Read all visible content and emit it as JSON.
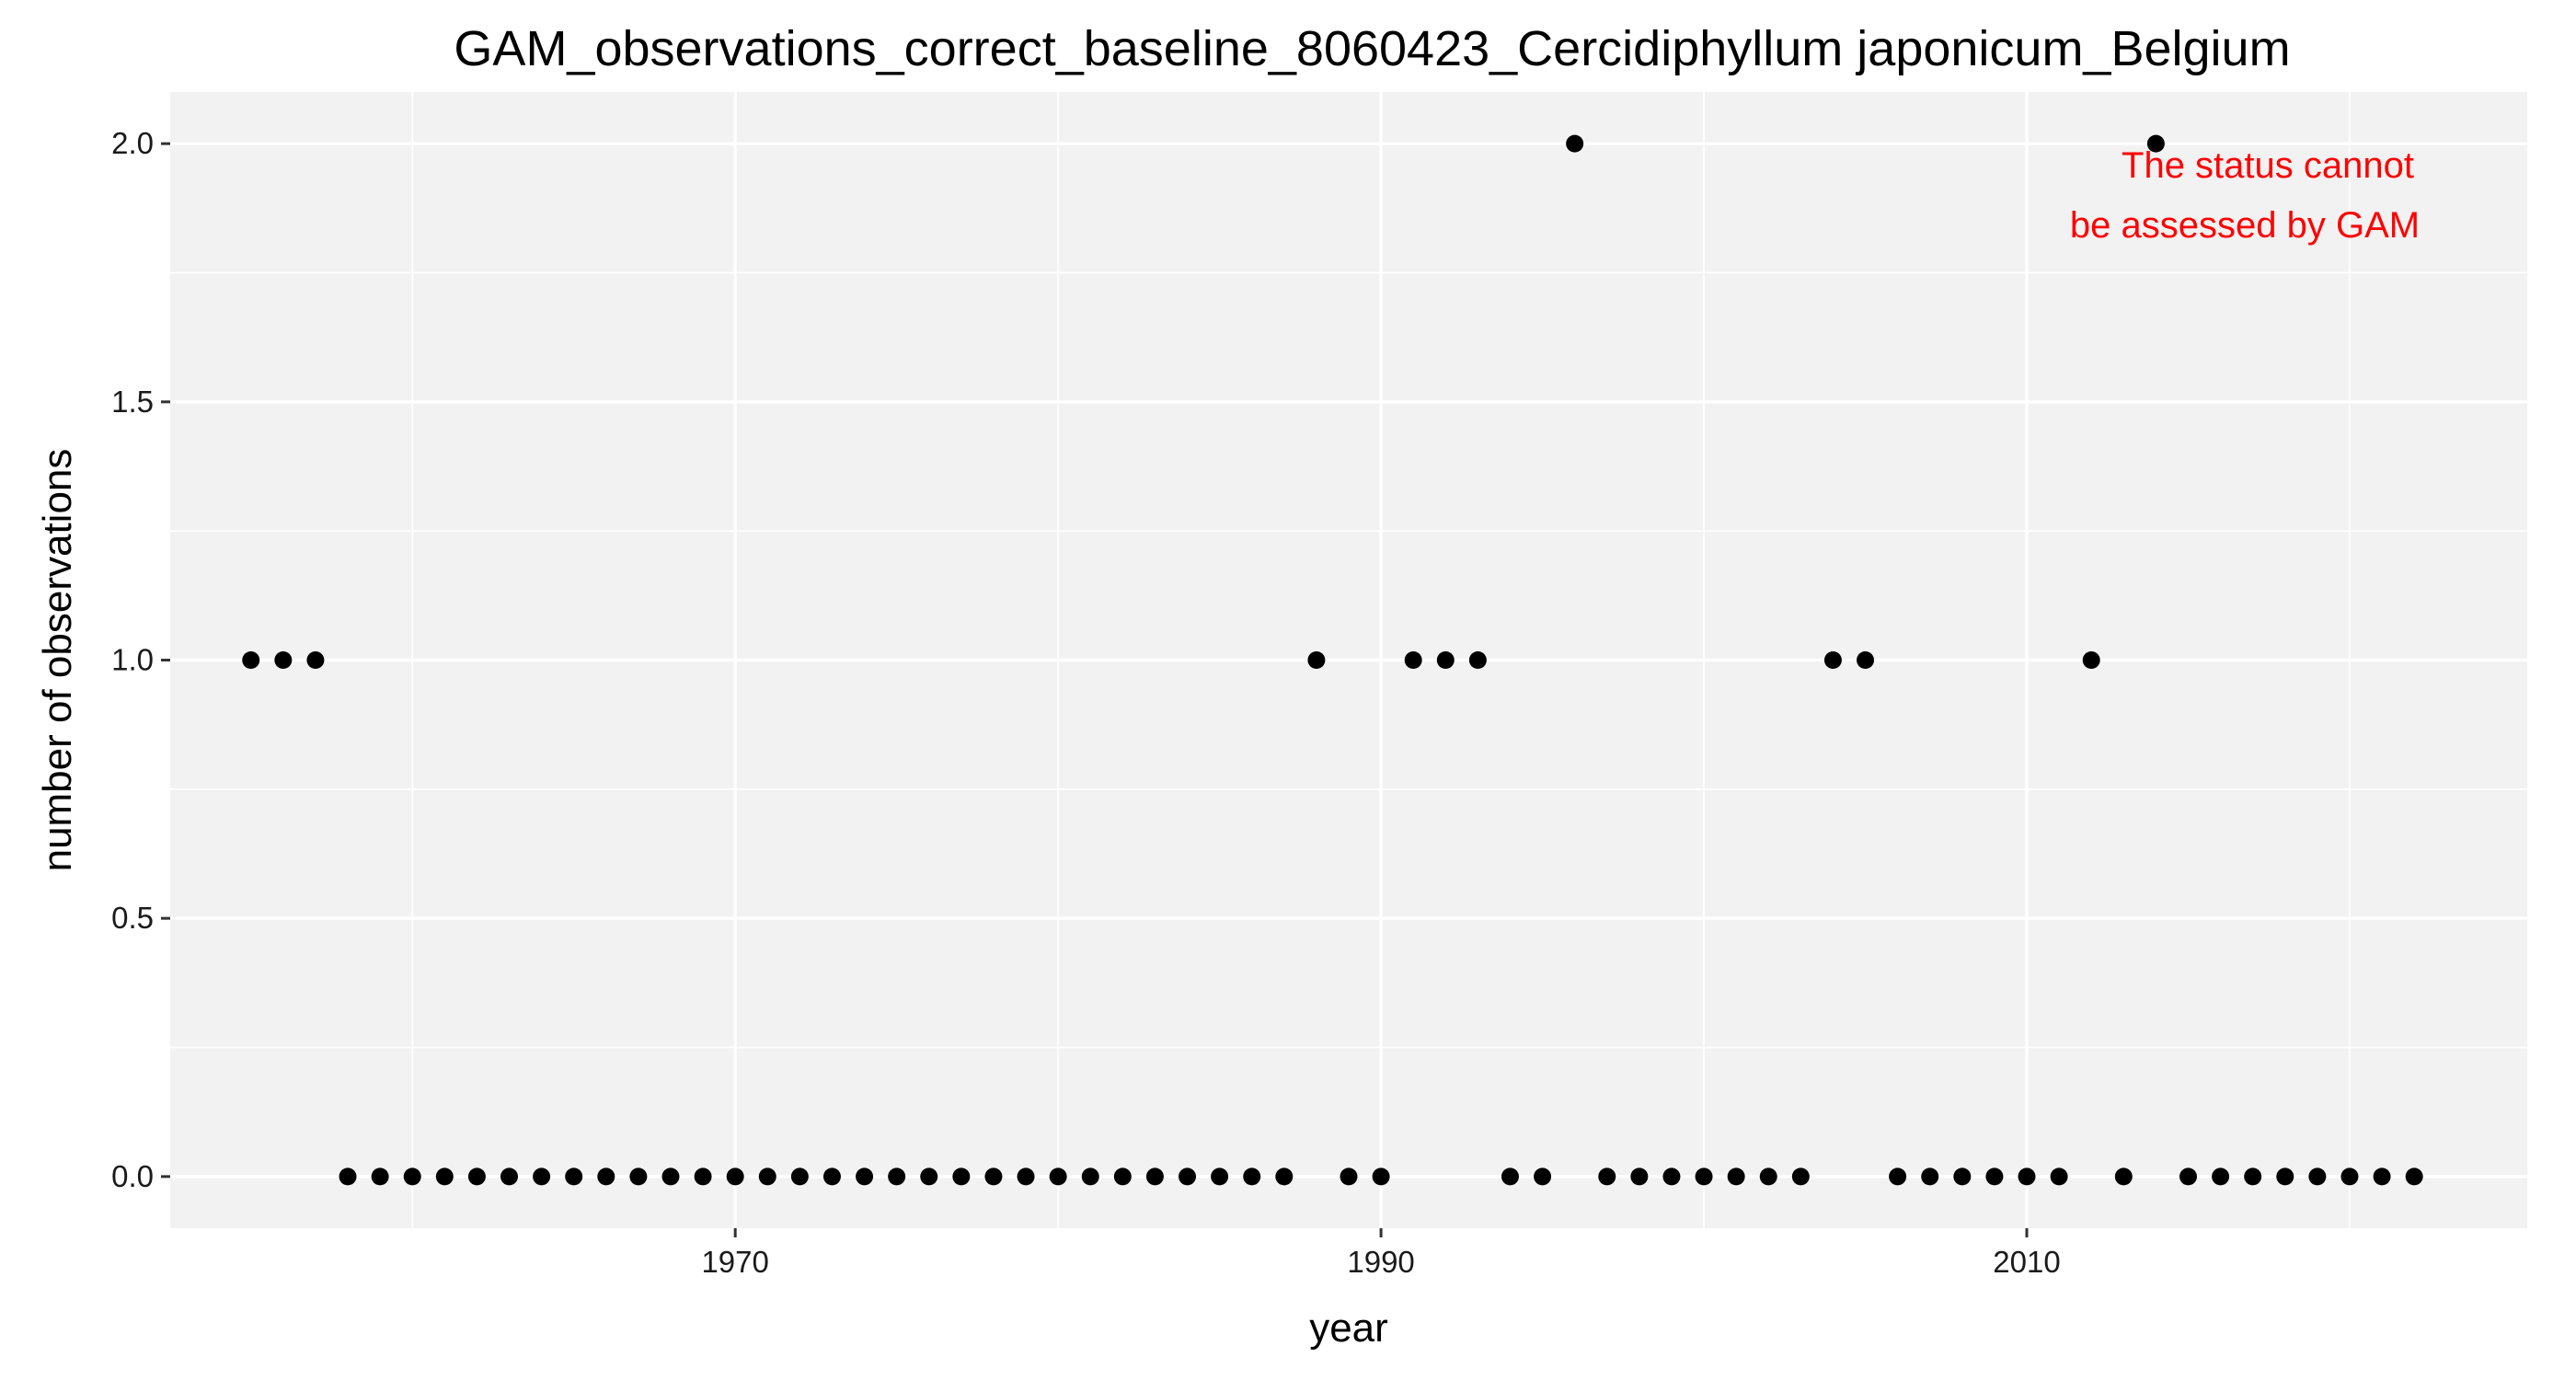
{
  "chart_data": {
    "type": "scatter",
    "title": "GAM_observations_correct_baseline_8060423_Cercidiphyllum japonicum_Belgium",
    "xlabel": "year",
    "ylabel": "number of observations",
    "xlim": [
      1952.5,
      2025.5
    ],
    "ylim": [
      -0.1,
      2.1
    ],
    "x_ticks": [
      1970,
      1990,
      2010
    ],
    "x_tick_labels": [
      "1970",
      "1990",
      "2010"
    ],
    "y_ticks": [
      0.0,
      0.5,
      1.0,
      1.5,
      2.0
    ],
    "y_tick_labels": [
      "0.0",
      "0.5",
      "1.0",
      "1.5",
      "2.0"
    ],
    "grid": true,
    "background": "#f2f2f2",
    "point_color": "#000000",
    "annotation": {
      "lines": [
        "The status cannot",
        "be assessed by GAM"
      ],
      "color": "#ff0000"
    },
    "x": [
      1955,
      1956,
      1957,
      1958,
      1959,
      1960,
      1961,
      1962,
      1963,
      1964,
      1965,
      1966,
      1967,
      1968,
      1969,
      1970,
      1971,
      1972,
      1973,
      1974,
      1975,
      1976,
      1977,
      1978,
      1979,
      1980,
      1981,
      1982,
      1983,
      1984,
      1985,
      1986,
      1987,
      1988,
      1989,
      1990,
      1991,
      1992,
      1993,
      1994,
      1995,
      1996,
      1997,
      1998,
      1999,
      2000,
      2001,
      2002,
      2003,
      2004,
      2005,
      2006,
      2007,
      2008,
      2009,
      2010,
      2011,
      2012,
      2013,
      2014,
      2015,
      2016,
      2017,
      2018,
      2019,
      2020,
      2021,
      2022
    ],
    "y": [
      1,
      1,
      1,
      0,
      0,
      0,
      0,
      0,
      0,
      0,
      0,
      0,
      0,
      0,
      0,
      0,
      0,
      0,
      0,
      0,
      0,
      0,
      0,
      0,
      0,
      0,
      0,
      0,
      0,
      0,
      0,
      0,
      0,
      1,
      0,
      0,
      1,
      1,
      1,
      0,
      0,
      2,
      0,
      0,
      0,
      0,
      0,
      0,
      0,
      1,
      1,
      0,
      0,
      0,
      0,
      0,
      0,
      1,
      0,
      2,
      0,
      0,
      0,
      0,
      0,
      0,
      0,
      0
    ]
  }
}
